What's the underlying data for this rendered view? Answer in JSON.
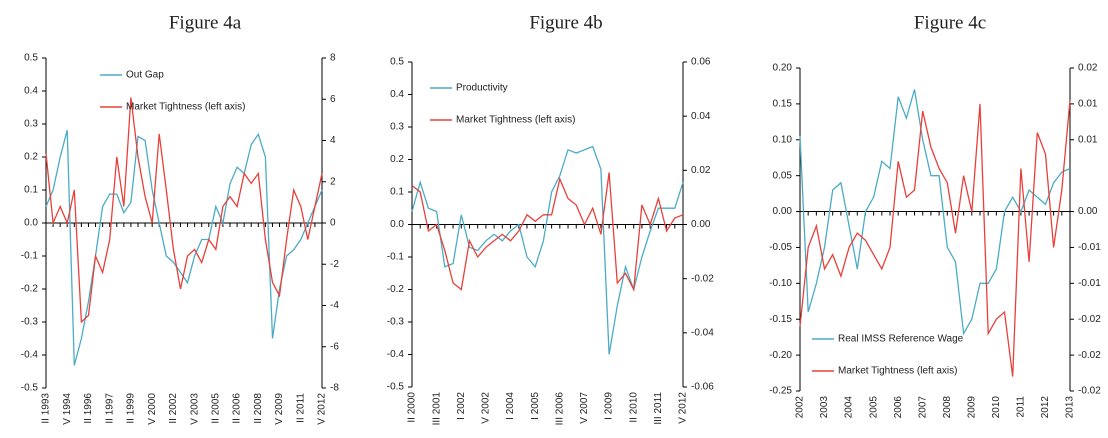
{
  "chart_data": [
    {
      "type": "line",
      "title": "Figure 4a",
      "legend": "top",
      "categories": [
        "II 1993",
        null,
        null,
        "V 1994",
        null,
        null,
        "II 1996",
        null,
        null,
        "II 1997",
        null,
        null,
        "II 1999",
        null,
        null,
        "V 2000",
        null,
        null,
        "II 2002",
        null,
        null,
        "V 2003",
        null,
        null,
        "II 2005",
        null,
        null,
        "II 2006",
        null,
        null,
        "II 2008",
        null,
        null,
        "V 2009",
        null,
        null,
        "II 2011",
        null,
        null,
        "V 2012"
      ],
      "series": [
        {
          "name": "Out Gap",
          "color": "#4bacc6",
          "axis": "y2",
          "values": [
            0.8,
            1.6,
            3.2,
            4.5,
            -6.9,
            -5.6,
            -3.8,
            -1.6,
            0.8,
            1.4,
            1.4,
            0.5,
            1,
            4.2,
            4,
            1.6,
            0,
            -1.6,
            -1.9,
            -2.4,
            -2.9,
            -1.6,
            -0.8,
            -0.8,
            0.8,
            0,
            1.9,
            2.7,
            2.4,
            3.8,
            4.3,
            3.2,
            -5.6,
            -3.2,
            -1.6,
            -1.3,
            -0.8,
            0,
            0.8,
            1.6
          ]
        },
        {
          "name": "Market Tightness (left axis)",
          "color": "#e8403a",
          "values": [
            0.21,
            0.0,
            0.05,
            0.0,
            0.1,
            -0.3,
            -0.28,
            -0.1,
            -0.15,
            -0.05,
            0.2,
            0.05,
            0.38,
            0.2,
            0.08,
            0.0,
            0.27,
            0.1,
            -0.08,
            -0.2,
            -0.1,
            -0.08,
            -0.12,
            -0.05,
            -0.08,
            0.05,
            0.08,
            0.05,
            0.15,
            0.12,
            0.15,
            -0.05,
            -0.18,
            -0.22,
            -0.05,
            0.1,
            0.05,
            -0.05,
            0.05,
            0.15
          ]
        }
      ],
      "ylim": [
        -0.5,
        0.5
      ],
      "yticks": [
        -0.5,
        -0.4,
        -0.3,
        -0.2,
        -0.1,
        {
          "value": 0,
          "label": "0.0"
        },
        0.1,
        0.2,
        0.3,
        0.4,
        0.5
      ],
      "y2lim": [
        -8,
        8
      ],
      "y2ticks": [
        -8,
        -6,
        -4,
        -2,
        0,
        2,
        4,
        6,
        8
      ]
    },
    {
      "type": "line",
      "title": "Figure 4b",
      "legend": "top-left",
      "categories": [
        "II 2000",
        null,
        null,
        "III 2001",
        null,
        null,
        "I 2002",
        null,
        null,
        "V 2002",
        null,
        null,
        "I 2004",
        null,
        null,
        "I 2005",
        null,
        null,
        "III 2006",
        null,
        null,
        "V 2007",
        null,
        null,
        "I 2009",
        null,
        null,
        "II 2010",
        null,
        null,
        "III 2011",
        null,
        null,
        "V 2012"
      ],
      "series": [
        {
          "name": "Productivity",
          "color": "#4bacc6",
          "axis": "y2",
          "values": [
            0.0048,
            0.0156,
            0.006,
            0.0048,
            -0.0156,
            -0.0144,
            0.0036,
            -0.0084,
            -0.0096,
            -0.006,
            -0.0036,
            -0.006,
            -0.0024,
            0,
            -0.012,
            -0.0156,
            -0.006,
            0.012,
            0.018,
            0.0276,
            0.0264,
            0.0276,
            0.0288,
            0.0204,
            -0.048,
            -0.03,
            -0.0156,
            -0.024,
            -0.012,
            -0.0024,
            0.006,
            0.006,
            0.006,
            0.0156
          ]
        },
        {
          "name": "Market Tightness (left axis)",
          "color": "#e8403a",
          "values": [
            0.12,
            0.1,
            -0.02,
            0.0,
            -0.08,
            -0.18,
            -0.2,
            -0.05,
            -0.1,
            -0.07,
            -0.05,
            -0.03,
            -0.05,
            -0.02,
            0.03,
            0.01,
            0.03,
            0.03,
            0.14,
            0.08,
            0.06,
            0.0,
            0.05,
            -0.03,
            0.16,
            -0.18,
            -0.15,
            -0.2,
            0.06,
            0.0,
            0.08,
            -0.02,
            0.02,
            0.03
          ]
        }
      ],
      "ylim": [
        -0.5,
        0.5
      ],
      "yticks": [
        -0.5,
        -0.4,
        -0.3,
        -0.2,
        -0.1,
        {
          "value": 0,
          "label": "0.0"
        },
        0.1,
        0.2,
        0.3,
        0.4,
        0.5
      ],
      "y2lim": [
        -0.06,
        0.06
      ],
      "y2ticks": [
        -0.06,
        -0.04,
        -0.02,
        {
          "value": 0,
          "label": "0.00"
        },
        0.02,
        0.04,
        0.06
      ]
    },
    {
      "type": "line",
      "title": "Figure 4c",
      "legend": "bottom-left",
      "categories": [
        "2002",
        null,
        null,
        "2003",
        null,
        null,
        "2004",
        null,
        null,
        "2005",
        null,
        null,
        "2006",
        null,
        null,
        "2007",
        null,
        null,
        "2008",
        null,
        null,
        "2009",
        null,
        null,
        "2010",
        null,
        null,
        "2011",
        null,
        null,
        "2012",
        null,
        null,
        "2013"
      ],
      "series": [
        {
          "name": "Real IMSS Reference Wage",
          "color": "#4bacc6",
          "axis": "y2",
          "values": [
            0.0105,
            -0.014,
            -0.01,
            -0.005,
            0.003,
            0.004,
            -0.002,
            -0.008,
            0,
            0.002,
            0.007,
            0.006,
            0.016,
            0.013,
            0.017,
            0.01,
            0.005,
            0.005,
            -0.005,
            -0.007,
            -0.017,
            -0.015,
            -0.01,
            -0.01,
            -0.008,
            0,
            0.002,
            0,
            0.003,
            0.002,
            0.001,
            0.004,
            0.0055,
            0.006
          ]
        },
        {
          "name": "Market Tightness (left axis)",
          "color": "#e8403a",
          "values": [
            -0.16,
            -0.05,
            -0.02,
            -0.08,
            -0.06,
            -0.09,
            -0.05,
            -0.03,
            -0.04,
            -0.06,
            -0.08,
            -0.05,
            0.07,
            0.02,
            0.03,
            0.14,
            0.09,
            0.06,
            0.04,
            -0.03,
            0.05,
            0.0,
            0.15,
            -0.17,
            -0.15,
            -0.14,
            -0.23,
            0.06,
            -0.07,
            0.11,
            0.08,
            -0.05,
            0.03,
            0.155
          ]
        }
      ],
      "ylim": [
        -0.25,
        0.2
      ],
      "yticks": [
        -0.25,
        {
          "value": -0.2,
          "label": "-0.20"
        },
        -0.15,
        {
          "value": -0.1,
          "label": "-0.10"
        },
        -0.05,
        {
          "value": 0,
          "label": "0.00"
        },
        0.05,
        {
          "value": 0.1,
          "label": "0.10"
        },
        0.15,
        {
          "value": 0.2,
          "label": "0.20"
        }
      ],
      "y2lim": [
        -0.025,
        0.02
      ],
      "y2ticks": [
        {
          "value": -0.025,
          "label": "-0.02"
        },
        -0.02,
        {
          "value": -0.015,
          "label": "-0.02"
        },
        {
          "value": -0.01,
          "label": "-0.01"
        },
        {
          "value": -0.005,
          "label": "-0.01"
        },
        {
          "value": 0,
          "label": "0.00"
        },
        {
          "value": 0.01,
          "label": "0.01"
        },
        {
          "value": 0.015,
          "label": "0.01"
        },
        {
          "value": 0.02,
          "label": "0.02"
        }
      ]
    }
  ]
}
